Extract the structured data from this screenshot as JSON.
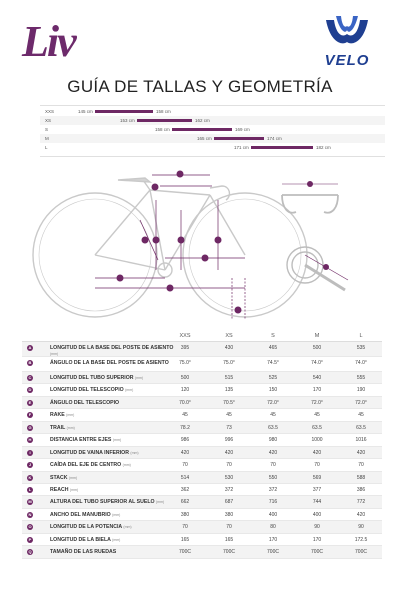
{
  "brand": {
    "liv": "Liv",
    "velo": "VELO"
  },
  "title": "GUÍA DE TALLAS Y GEOMETRÍA",
  "colors": {
    "accent": "#6e2864",
    "velo_blue": "#1f3f91"
  },
  "size_ranges": [
    {
      "size": "XXS",
      "min": "145 cm",
      "max": "158 cm"
    },
    {
      "size": "XS",
      "min": "153 cm",
      "max": "162 cm"
    },
    {
      "size": "S",
      "min": "158 cm",
      "max": "169 cm"
    },
    {
      "size": "M",
      "min": "165 cm",
      "max": "174 cm"
    },
    {
      "size": "L",
      "min": "171 cm",
      "max": "182 cm"
    }
  ],
  "diagram_letters": [
    "A",
    "B",
    "C",
    "D",
    "E",
    "F",
    "G",
    "H",
    "I",
    "J",
    "K",
    "L",
    "M",
    "N",
    "O",
    "P"
  ],
  "diagram_angles": [
    "72.0°",
    "74.0°"
  ],
  "table": {
    "headers": [
      "XXS",
      "XS",
      "S",
      "M",
      "L"
    ],
    "rows": [
      {
        "id": "A",
        "label": "LONGITUD DE LA BASE DEL POSTE DE ASIENTO",
        "unit": "(mm)",
        "values": [
          "395",
          "430",
          "465",
          "500",
          "535"
        ]
      },
      {
        "id": "B",
        "label": "ÁNGULO DE LA BASE DEL POSTE DE ASIENTO",
        "unit": "",
        "values": [
          "75.0°",
          "75.0°",
          "74.5°",
          "74.0°",
          "74.0°"
        ]
      },
      {
        "id": "C",
        "label": "LONGITUD DEL TUBO SUPERIOR",
        "unit": "(mm)",
        "values": [
          "500",
          "515",
          "525",
          "540",
          "555"
        ]
      },
      {
        "id": "D",
        "label": "LONGITUD DEL TELESCOPIO",
        "unit": "(mm)",
        "values": [
          "120",
          "135",
          "150",
          "170",
          "190"
        ]
      },
      {
        "id": "E",
        "label": "ÁNGULO DEL TELESCOPIO",
        "unit": "",
        "values": [
          "70.0°",
          "70.5°",
          "72.0°",
          "72.0°",
          "72.0°"
        ]
      },
      {
        "id": "F",
        "label": "RAKE",
        "unit": "(mm)",
        "values": [
          "45",
          "45",
          "45",
          "45",
          "45"
        ]
      },
      {
        "id": "G",
        "label": "TRAIL",
        "unit": "(mm)",
        "values": [
          "78.2",
          "73",
          "63.5",
          "63.5",
          "63.5"
        ]
      },
      {
        "id": "H",
        "label": "DISTANCIA ENTRE EJES",
        "unit": "(mm)",
        "values": [
          "986",
          "996",
          "980",
          "1000",
          "1016"
        ]
      },
      {
        "id": "I",
        "label": "LONGITUD DE VAINA INFERIOR",
        "unit": "(mm)",
        "values": [
          "420",
          "420",
          "420",
          "420",
          "420"
        ]
      },
      {
        "id": "J",
        "label": "CAÍDA DEL EJE DE CENTRO",
        "unit": "(mm)",
        "values": [
          "70",
          "70",
          "70",
          "70",
          "70"
        ]
      },
      {
        "id": "K",
        "label": "STACK",
        "unit": "(mm)",
        "values": [
          "514",
          "530",
          "550",
          "569",
          "588"
        ]
      },
      {
        "id": "L",
        "label": "REACH",
        "unit": "(mm)",
        "values": [
          "362",
          "372",
          "372",
          "377",
          "386"
        ]
      },
      {
        "id": "M",
        "label": "ALTURA DEL TUBO SUPERIOR AL SUELO",
        "unit": "(mm)",
        "values": [
          "662",
          "687",
          "716",
          "744",
          "772"
        ]
      },
      {
        "id": "N",
        "label": "ANCHO DEL MANUBRIO",
        "unit": "(mm)",
        "values": [
          "380",
          "380",
          "400",
          "400",
          "420"
        ]
      },
      {
        "id": "O",
        "label": "LONGITUD DE LA POTENCIA",
        "unit": "(mm)",
        "values": [
          "70",
          "70",
          "80",
          "90",
          "90"
        ]
      },
      {
        "id": "P",
        "label": "LONGITUD DE LA BIELA",
        "unit": "(mm)",
        "values": [
          "165",
          "165",
          "170",
          "170",
          "172.5"
        ]
      },
      {
        "id": "Q",
        "label": "TAMAÑO DE LAS RUEDAS",
        "unit": "",
        "values": [
          "700C",
          "700C",
          "700C",
          "700C",
          "700C"
        ]
      }
    ]
  }
}
